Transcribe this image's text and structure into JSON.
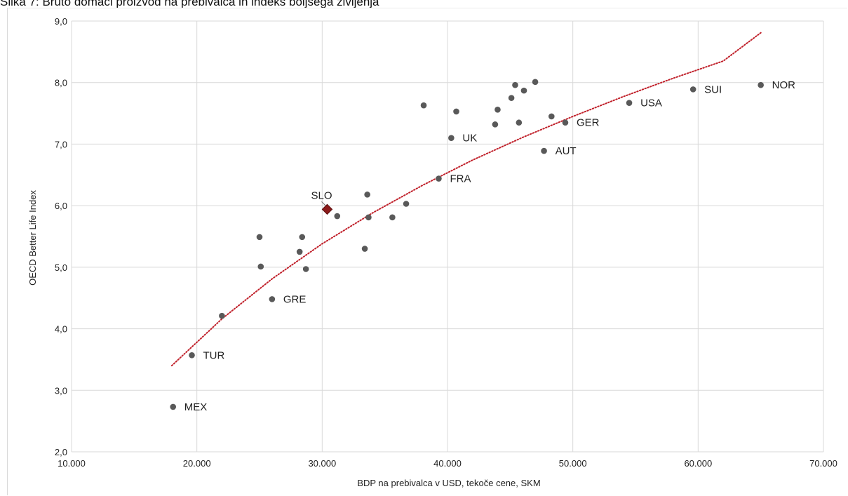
{
  "caption": "Slika 7: Bruto domači proizvod na prebivalca in indeks boljšega življenja",
  "chart_data": {
    "type": "scatter",
    "xlabel": "BDP na prebivalca v USD, tekoče cene, SKM",
    "ylabel": "OECD Better Life Index",
    "xlim": [
      10000,
      70000
    ],
    "ylim": [
      2.0,
      9.0
    ],
    "x_ticks": [
      10000,
      20000,
      30000,
      40000,
      50000,
      60000,
      70000
    ],
    "x_tick_labels": [
      "10.000",
      "20.000",
      "30.000",
      "40.000",
      "50.000",
      "60.000",
      "70.000"
    ],
    "y_ticks": [
      2,
      3,
      4,
      5,
      6,
      7,
      8,
      9
    ],
    "y_tick_labels": [
      "2,0",
      "3,0",
      "4,0",
      "5,0",
      "6,0",
      "7,0",
      "8,0",
      "9,0"
    ],
    "grid": true,
    "colors": {
      "points": "#595959",
      "highlight": "#8b1a1a",
      "trend": "#c0202a",
      "grid": "#d9d9d9"
    },
    "points": [
      {
        "x": 18100,
        "y": 2.73,
        "label": "MEX"
      },
      {
        "x": 19600,
        "y": 3.57,
        "label": "TUR"
      },
      {
        "x": 22000,
        "y": 4.21,
        "label": ""
      },
      {
        "x": 25000,
        "y": 5.49,
        "label": ""
      },
      {
        "x": 25100,
        "y": 5.01,
        "label": ""
      },
      {
        "x": 26000,
        "y": 4.48,
        "label": "GRE"
      },
      {
        "x": 28200,
        "y": 5.25,
        "label": ""
      },
      {
        "x": 28400,
        "y": 5.49,
        "label": ""
      },
      {
        "x": 28700,
        "y": 4.97,
        "label": ""
      },
      {
        "x": 30400,
        "y": 5.94,
        "label": "SLO",
        "highlight": true
      },
      {
        "x": 31200,
        "y": 5.83,
        "label": ""
      },
      {
        "x": 33400,
        "y": 5.3,
        "label": ""
      },
      {
        "x": 33600,
        "y": 6.18,
        "label": ""
      },
      {
        "x": 33700,
        "y": 5.81,
        "label": ""
      },
      {
        "x": 35600,
        "y": 5.81,
        "label": ""
      },
      {
        "x": 36700,
        "y": 6.03,
        "label": ""
      },
      {
        "x": 38100,
        "y": 7.63,
        "label": ""
      },
      {
        "x": 39300,
        "y": 6.44,
        "label": "FRA"
      },
      {
        "x": 40300,
        "y": 7.1,
        "label": "UK"
      },
      {
        "x": 40700,
        "y": 7.53,
        "label": ""
      },
      {
        "x": 43800,
        "y": 7.32,
        "label": ""
      },
      {
        "x": 44000,
        "y": 7.56,
        "label": ""
      },
      {
        "x": 45100,
        "y": 7.75,
        "label": ""
      },
      {
        "x": 45400,
        "y": 7.96,
        "label": ""
      },
      {
        "x": 45700,
        "y": 7.35,
        "label": ""
      },
      {
        "x": 46100,
        "y": 7.87,
        "label": ""
      },
      {
        "x": 47000,
        "y": 8.01,
        "label": ""
      },
      {
        "x": 47700,
        "y": 6.89,
        "label": "AUT"
      },
      {
        "x": 48300,
        "y": 7.45,
        "label": ""
      },
      {
        "x": 49400,
        "y": 7.35,
        "label": "GER"
      },
      {
        "x": 54500,
        "y": 7.67,
        "label": "USA"
      },
      {
        "x": 59600,
        "y": 7.89,
        "label": "SUI"
      },
      {
        "x": 65000,
        "y": 7.96,
        "label": "NOR"
      }
    ],
    "trendline": {
      "type": "logarithmic",
      "x": [
        18000,
        22000,
        26000,
        30000,
        34000,
        38000,
        42000,
        46000,
        50000,
        54000,
        58000,
        62000,
        65000
      ],
      "y": [
        3.4,
        4.16,
        4.81,
        5.38,
        5.88,
        6.33,
        6.74,
        7.11,
        7.45,
        7.77,
        8.07,
        8.35,
        8.81
      ]
    }
  }
}
